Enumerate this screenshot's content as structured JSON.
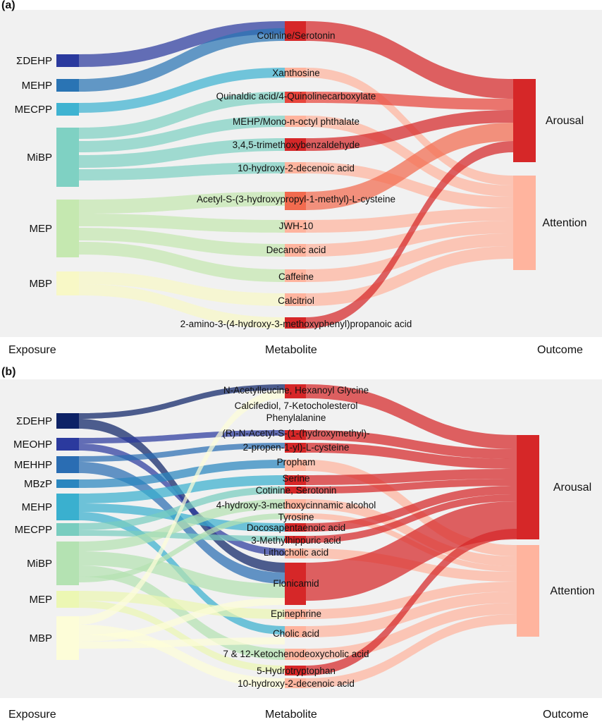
{
  "panels": [
    {
      "id": "a",
      "tag": "(a)",
      "axis": {
        "exposure": "Exposure",
        "metabolite": "Metabolite",
        "outcome": "Outcome"
      },
      "exposures": [
        {
          "name": "ΣDEHP",
          "color": "#2b3a9e"
        },
        {
          "name": "MEHP",
          "color": "#2a74b4"
        },
        {
          "name": "MECPP",
          "color": "#3fb3d1"
        },
        {
          "name": "MiBP",
          "color": "#7fd1c3"
        },
        {
          "name": "MEP",
          "color": "#c5e8b0"
        },
        {
          "name": "MBP",
          "color": "#f8f8c6"
        }
      ],
      "metabolites": [
        {
          "name": "Cotinine/Serotonin",
          "color": "#d62728"
        },
        {
          "name": "Xanthosine",
          "color": "#ffb49e"
        },
        {
          "name": "Quinaldic acid/4-Quinolinecarboxylate",
          "color": "#e8453c"
        },
        {
          "name": "MEHP/Mono-n-octyl phthalate",
          "color": "#ffb49e"
        },
        {
          "name": "3,4,5-trimethoxybenzaldehyde",
          "color": "#d62728"
        },
        {
          "name": "10-hydroxy-2-decenoic acid",
          "color": "#ffb49e"
        },
        {
          "name": "Acetyl-S-(3-hydroxypropyl-1-methyl)-L-cysteine",
          "color": "#f26b4f"
        },
        {
          "name": "JWH-10",
          "color": "#ffb49e"
        },
        {
          "name": "Decanoic acid",
          "color": "#ffb49e"
        },
        {
          "name": "Caffeine",
          "color": "#ffb49e"
        },
        {
          "name": "Calcitriol",
          "color": "#ffb49e"
        },
        {
          "name": "2-amino-3-(4-hydroxy-3-methoxyphenyl)propanoic acid",
          "color": "#d62728"
        }
      ],
      "outcomes": [
        {
          "name": "Arousal",
          "color": "#d62728"
        },
        {
          "name": "Attention",
          "color": "#ffb49e"
        }
      ]
    },
    {
      "id": "b",
      "tag": "(b)",
      "axis": {
        "exposure": "Exposure",
        "metabolite": "Metabolite",
        "outcome": "Outcome"
      },
      "exposures": [
        {
          "name": "ΣDEHP",
          "color": "#0d2266"
        },
        {
          "name": "MEOHP",
          "color": "#2b3a9e"
        },
        {
          "name": "MEHHP",
          "color": "#2a6db3"
        },
        {
          "name": "MBzP",
          "color": "#2a86bf"
        },
        {
          "name": "MEHP",
          "color": "#3ab0cf"
        },
        {
          "name": "MECPP",
          "color": "#79cdbf"
        },
        {
          "name": "MiBP",
          "color": "#b4e2b2"
        },
        {
          "name": "MEP",
          "color": "#ecf7b3"
        },
        {
          "name": "MBP",
          "color": "#fdfdd8"
        }
      ],
      "metabolites": [
        {
          "name": "N-Acetylleucine, Hexanoyl Glycine",
          "color": "#d62728"
        },
        {
          "name": "Calcifediol, 7-Ketocholesterol",
          "color": "#ffb49e"
        },
        {
          "name": "Phenylalanine",
          "color": "#ffb49e"
        },
        {
          "name": "(R)-N-Acetyl-S-(1-(hydroxymethyl)-",
          "color": "#d62728"
        },
        {
          "name": "2-propen-1-yl)-L-cysteine",
          "color": "#d62728"
        },
        {
          "name": "Propham",
          "color": "#ffb49e"
        },
        {
          "name": "Serine",
          "color": "#d62728"
        },
        {
          "name": "Cotinine, Serotonin",
          "color": "#d62728"
        },
        {
          "name": "4-hydroxy-3-methoxycinnamic alcohol",
          "color": "#ffb49e"
        },
        {
          "name": "Tyrosine",
          "color": "#ffb49e"
        },
        {
          "name": "Docosapentaenoic acid",
          "color": "#d62728"
        },
        {
          "name": "3-Methylhippuric acid",
          "color": "#d62728"
        },
        {
          "name": "Lithocholic acid",
          "color": "#ffb49e"
        },
        {
          "name": "Flonicamid",
          "color": "#d62728"
        },
        {
          "name": "Epinephrine",
          "color": "#ffb49e"
        },
        {
          "name": "Cholic acid",
          "color": "#ffb49e"
        },
        {
          "name": "7 & 12-Ketochenodeoxycholic acid",
          "color": "#ffb49e"
        },
        {
          "name": "5-Hydrotryptophan",
          "color": "#d62728"
        },
        {
          "name": "10-hydroxy-2-decenoic acid",
          "color": "#ffb49e"
        }
      ],
      "outcomes": [
        {
          "name": "Arousal",
          "color": "#d62728"
        },
        {
          "name": "Attention",
          "color": "#ffb49e"
        }
      ]
    }
  ]
}
